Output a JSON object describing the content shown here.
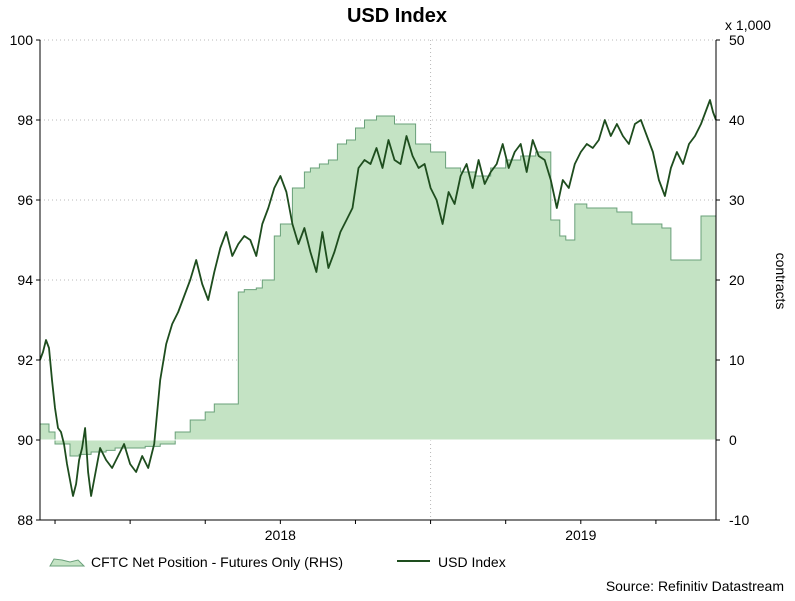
{
  "chart_data": {
    "type": "area+line",
    "title": "USD Index",
    "source": "Source: Refinitiv Datastream",
    "left_axis": {
      "ylim": [
        88,
        100
      ],
      "ticks": [
        88,
        90,
        92,
        94,
        96,
        98,
        100
      ]
    },
    "right_axis": {
      "ylim": [
        -10,
        50
      ],
      "ticks": [
        -10,
        0,
        10,
        20,
        30,
        40,
        50
      ],
      "label": "contracts",
      "multiplier": "x 1,000"
    },
    "x_axis": {
      "range": [
        2017.2,
        2019.45
      ],
      "tick_labels": [
        {
          "label": "2018",
          "x": 2018.0
        },
        {
          "label": "2019",
          "x": 2019.0
        }
      ]
    },
    "colors": {
      "area_fill": "#c4e3c4",
      "area_stroke": "#6aa07a",
      "line": "#1e4d1e",
      "grid": "#b8b8b8"
    },
    "series": [
      {
        "name": "CFTC Net Position - Futures Only (RHS)",
        "axis": "right",
        "type": "area",
        "x": [
          2017.2,
          2017.23,
          2017.25,
          2017.3,
          2017.33,
          2017.37,
          2017.42,
          2017.45,
          2017.5,
          2017.55,
          2017.6,
          2017.65,
          2017.7,
          2017.75,
          2017.78,
          2017.82,
          2017.86,
          2017.88,
          2017.92,
          2017.94,
          2017.98,
          2018.0,
          2018.04,
          2018.08,
          2018.1,
          2018.13,
          2018.16,
          2018.19,
          2018.22,
          2018.25,
          2018.28,
          2018.32,
          2018.38,
          2018.45,
          2018.5,
          2018.55,
          2018.6,
          2018.65,
          2018.7,
          2018.75,
          2018.8,
          2018.85,
          2018.9,
          2018.93,
          2018.95,
          2018.98,
          2019.02,
          2019.07,
          2019.12,
          2019.17,
          2019.22,
          2019.27,
          2019.3,
          2019.35,
          2019.4,
          2019.45
        ],
        "values": [
          2.0,
          1.0,
          -0.5,
          -2.0,
          -1.8,
          -1.5,
          -1.3,
          -1.0,
          -1.0,
          -0.8,
          -0.5,
          1.0,
          2.5,
          3.5,
          4.5,
          4.5,
          18.5,
          18.8,
          19.0,
          20.0,
          25.5,
          27.0,
          31.5,
          33.5,
          34.0,
          34.5,
          35.0,
          37.0,
          37.5,
          39.0,
          40.0,
          40.5,
          39.5,
          37.0,
          36.0,
          34.0,
          33.5,
          33.0,
          34.0,
          35.0,
          35.5,
          36.0,
          27.5,
          25.5,
          25.0,
          29.5,
          29.0,
          29.0,
          28.5,
          27.0,
          27.0,
          26.5,
          22.5,
          22.5,
          28.0,
          30.5
        ]
      },
      {
        "name": "USD Index",
        "axis": "left",
        "type": "line",
        "x": [
          2017.2,
          2017.21,
          2017.22,
          2017.23,
          2017.24,
          2017.25,
          2017.26,
          2017.27,
          2017.28,
          2017.29,
          2017.3,
          2017.31,
          2017.32,
          2017.33,
          2017.34,
          2017.35,
          2017.36,
          2017.37,
          2017.38,
          2017.39,
          2017.4,
          2017.42,
          2017.44,
          2017.46,
          2017.48,
          2017.5,
          2017.52,
          2017.54,
          2017.56,
          2017.58,
          2017.6,
          2017.62,
          2017.64,
          2017.66,
          2017.68,
          2017.7,
          2017.72,
          2017.74,
          2017.76,
          2017.78,
          2017.8,
          2017.82,
          2017.84,
          2017.86,
          2017.88,
          2017.9,
          2017.92,
          2017.94,
          2017.96,
          2017.98,
          2018.0,
          2018.02,
          2018.04,
          2018.06,
          2018.08,
          2018.1,
          2018.12,
          2018.14,
          2018.16,
          2018.18,
          2018.2,
          2018.22,
          2018.24,
          2018.26,
          2018.28,
          2018.3,
          2018.32,
          2018.34,
          2018.36,
          2018.38,
          2018.4,
          2018.42,
          2018.44,
          2018.46,
          2018.48,
          2018.5,
          2018.52,
          2018.54,
          2018.56,
          2018.58,
          2018.6,
          2018.62,
          2018.64,
          2018.66,
          2018.68,
          2018.7,
          2018.72,
          2018.74,
          2018.76,
          2018.78,
          2018.8,
          2018.82,
          2018.84,
          2018.86,
          2018.88,
          2018.9,
          2018.92,
          2018.94,
          2018.96,
          2018.98,
          2019.0,
          2019.02,
          2019.04,
          2019.06,
          2019.08,
          2019.1,
          2019.12,
          2019.14,
          2019.16,
          2019.18,
          2019.2,
          2019.22,
          2019.24,
          2019.26,
          2019.28,
          2019.3,
          2019.32,
          2019.34,
          2019.36,
          2019.38,
          2019.4,
          2019.42,
          2019.43,
          2019.44,
          2019.45
        ],
        "values": [
          92.0,
          92.2,
          92.5,
          92.3,
          91.5,
          90.8,
          90.3,
          90.2,
          89.9,
          89.4,
          89.0,
          88.6,
          88.9,
          89.5,
          89.8,
          90.3,
          89.2,
          88.6,
          89.0,
          89.4,
          89.8,
          89.5,
          89.3,
          89.6,
          89.9,
          89.4,
          89.2,
          89.6,
          89.3,
          89.9,
          91.5,
          92.4,
          92.9,
          93.2,
          93.6,
          94.0,
          94.5,
          93.9,
          93.5,
          94.2,
          94.8,
          95.2,
          94.6,
          94.9,
          95.1,
          95.0,
          94.6,
          95.4,
          95.8,
          96.3,
          96.6,
          96.2,
          95.4,
          94.9,
          95.3,
          94.7,
          94.2,
          95.2,
          94.3,
          94.7,
          95.2,
          95.5,
          95.8,
          96.8,
          97.0,
          96.9,
          97.3,
          96.8,
          97.5,
          97.0,
          96.9,
          97.6,
          97.1,
          96.8,
          96.9,
          96.3,
          96.0,
          95.4,
          96.2,
          95.9,
          96.6,
          96.9,
          96.3,
          97.0,
          96.4,
          96.7,
          96.9,
          97.4,
          96.8,
          97.2,
          97.4,
          96.7,
          97.5,
          97.1,
          97.0,
          96.5,
          95.8,
          96.5,
          96.3,
          96.9,
          97.2,
          97.4,
          97.3,
          97.5,
          98.0,
          97.6,
          97.9,
          97.6,
          97.4,
          97.9,
          98.0,
          97.6,
          97.2,
          96.5,
          96.1,
          96.8,
          97.2,
          96.9,
          97.4,
          97.6,
          97.9,
          98.3,
          98.5,
          98.2,
          98.0
        ]
      }
    ]
  }
}
